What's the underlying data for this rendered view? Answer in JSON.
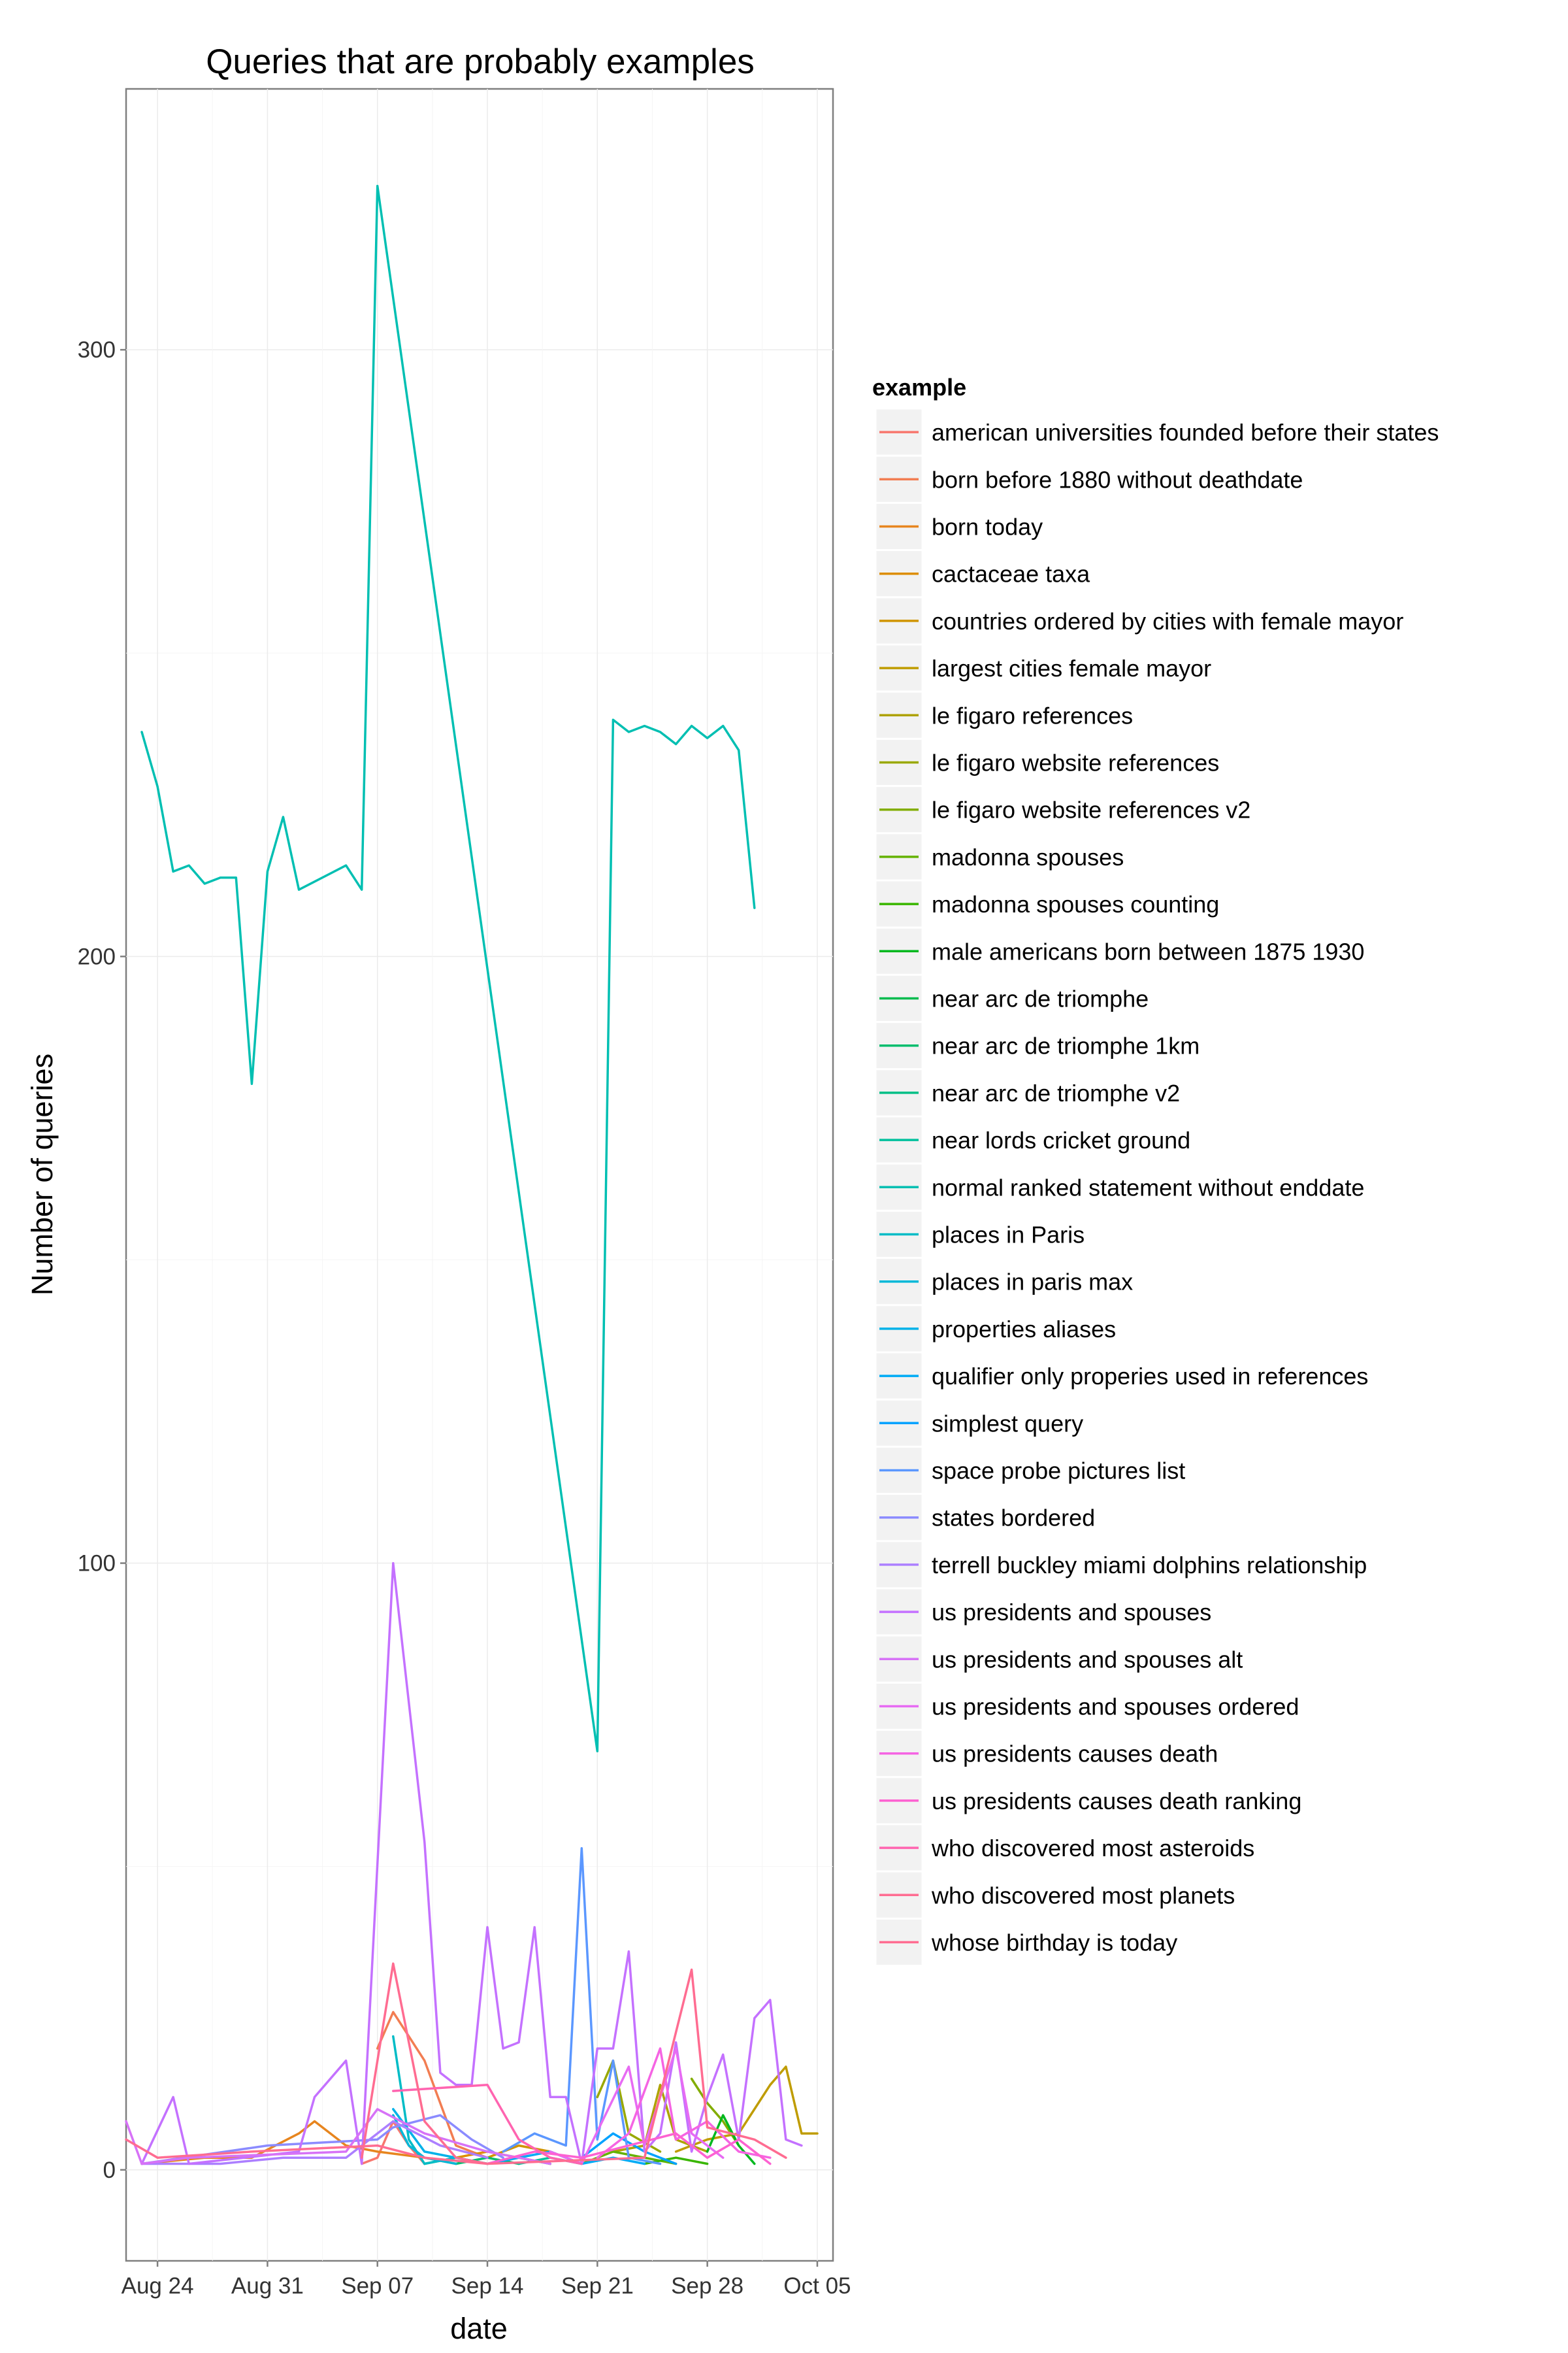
{
  "chart_data": {
    "type": "line",
    "title": "Queries that are probably examples",
    "xlabel": "date",
    "ylabel": "Number of queries",
    "x_ticks": [
      "Aug 24",
      "Aug 31",
      "Sep 07",
      "Sep 14",
      "Sep 21",
      "Sep 28",
      "Oct 05"
    ],
    "y_ticks": [
      "0",
      "100",
      "200",
      "300"
    ],
    "xlim": [
      "2015-08-22",
      "2015-10-06"
    ],
    "ylim": [
      -15,
      343
    ],
    "grid": true,
    "legend_title": "example",
    "legend_position": "right",
    "series": [
      {
        "name": "american universities founded before their states",
        "color": "#F8766D",
        "points": [
          [
            "2015-09-06",
            1
          ],
          [
            "2015-09-07",
            2
          ],
          [
            "2015-09-08",
            8
          ],
          [
            "2015-09-09",
            4
          ],
          [
            "2015-09-10",
            1
          ]
        ]
      },
      {
        "name": "born before 1880 without deathdate",
        "color": "#F27D52",
        "points": [
          [
            "2015-09-07",
            20
          ],
          [
            "2015-09-08",
            26
          ],
          [
            "2015-09-09",
            22
          ],
          [
            "2015-09-10",
            18
          ],
          [
            "2015-09-12",
            4
          ],
          [
            "2015-09-14",
            2
          ]
        ]
      },
      {
        "name": "born today",
        "color": "#E7851E",
        "points": [
          [
            "2015-08-23",
            1
          ],
          [
            "2015-08-27",
            2
          ],
          [
            "2015-08-30",
            2
          ],
          [
            "2015-09-02",
            6
          ],
          [
            "2015-09-03",
            8
          ],
          [
            "2015-09-05",
            4
          ],
          [
            "2015-09-07",
            3
          ],
          [
            "2015-09-10",
            2
          ],
          [
            "2015-09-12",
            1
          ]
        ]
      },
      {
        "name": "cactaceae taxa",
        "color": "#DD8D00",
        "points": [
          [
            "2015-09-12",
            2
          ],
          [
            "2015-09-14",
            3
          ],
          [
            "2015-09-16",
            2
          ],
          [
            "2015-09-18",
            1
          ]
        ]
      },
      {
        "name": "countries ordered by cities with female mayor",
        "color": "#D09400",
        "points": [
          [
            "2015-09-14",
            2
          ],
          [
            "2015-09-16",
            4
          ],
          [
            "2015-09-18",
            3
          ],
          [
            "2015-09-20",
            1
          ]
        ]
      },
      {
        "name": "largest cities female mayor",
        "color": "#BF9C00",
        "points": [
          [
            "2015-09-26",
            3
          ],
          [
            "2015-09-28",
            5
          ],
          [
            "2015-09-30",
            6
          ],
          [
            "2015-10-02",
            14
          ],
          [
            "2015-10-03",
            17
          ],
          [
            "2015-10-04",
            6
          ],
          [
            "2015-10-05",
            6
          ]
        ]
      },
      {
        "name": "le figaro references",
        "color": "#AEA200",
        "points": [
          [
            "2015-09-22",
            3
          ],
          [
            "2015-09-24",
            4
          ],
          [
            "2015-09-25",
            14
          ],
          [
            "2015-09-26",
            5
          ],
          [
            "2015-09-28",
            3
          ]
        ]
      },
      {
        "name": "le figaro website references",
        "color": "#99A800",
        "points": [
          [
            "2015-09-21",
            12
          ],
          [
            "2015-09-22",
            18
          ],
          [
            "2015-09-23",
            6
          ],
          [
            "2015-09-25",
            3
          ]
        ]
      },
      {
        "name": "le figaro website references v2",
        "color": "#82AD00",
        "points": [
          [
            "2015-09-27",
            15
          ],
          [
            "2015-09-28",
            11
          ],
          [
            "2015-09-29",
            8
          ],
          [
            "2015-09-30",
            4
          ]
        ]
      },
      {
        "name": "madonna spouses",
        "color": "#64B200",
        "points": [
          [
            "2015-09-20",
            1
          ],
          [
            "2015-09-22",
            3
          ],
          [
            "2015-09-24",
            2
          ],
          [
            "2015-09-26",
            1
          ]
        ]
      },
      {
        "name": "madonna spouses counting",
        "color": "#39B600",
        "points": [
          [
            "2015-09-24",
            1
          ],
          [
            "2015-09-26",
            2
          ],
          [
            "2015-09-28",
            1
          ]
        ]
      },
      {
        "name": "male americans born between 1875 1930",
        "color": "#00B81F",
        "points": [
          [
            "2015-09-28",
            3
          ],
          [
            "2015-09-29",
            9
          ],
          [
            "2015-09-30",
            4
          ],
          [
            "2015-10-01",
            1
          ]
        ]
      },
      {
        "name": "near arc de triomphe",
        "color": "#00BB4E",
        "points": [
          [
            "2015-09-10",
            1
          ],
          [
            "2015-09-12",
            2
          ],
          [
            "2015-09-14",
            1
          ]
        ]
      },
      {
        "name": "near arc de triomphe 1km",
        "color": "#00BD6D",
        "points": [
          [
            "2015-09-12",
            1
          ],
          [
            "2015-09-14",
            2
          ],
          [
            "2015-09-16",
            1
          ]
        ]
      },
      {
        "name": "near arc de triomphe v2",
        "color": "#00BF86",
        "points": [
          [
            "2015-09-14",
            1
          ],
          [
            "2015-09-16",
            2
          ],
          [
            "2015-09-18",
            1
          ]
        ]
      },
      {
        "name": "near lords cricket ground",
        "color": "#00C09D",
        "points": [
          [
            "2015-09-16",
            1
          ],
          [
            "2015-09-18",
            2
          ],
          [
            "2015-09-20",
            1
          ]
        ]
      },
      {
        "name": "normal ranked statement without enddate",
        "color": "#00BFB2",
        "points": [
          [
            "2015-08-23",
            237
          ],
          [
            "2015-08-24",
            228
          ],
          [
            "2015-08-25",
            214
          ],
          [
            "2015-08-26",
            215
          ],
          [
            "2015-08-27",
            212
          ],
          [
            "2015-08-28",
            213
          ],
          [
            "2015-08-29",
            213
          ],
          [
            "2015-08-30",
            179
          ],
          [
            "2015-08-31",
            214
          ],
          [
            "2015-09-01",
            223
          ],
          [
            "2015-09-02",
            211
          ],
          [
            "2015-09-05",
            215
          ],
          [
            "2015-09-06",
            211
          ],
          [
            "2015-09-07",
            327
          ],
          [
            "2015-09-21",
            69
          ],
          [
            "2015-09-22",
            239
          ],
          [
            "2015-09-23",
            237
          ],
          [
            "2015-09-24",
            238
          ],
          [
            "2015-09-25",
            237
          ],
          [
            "2015-09-26",
            235
          ],
          [
            "2015-09-27",
            238
          ],
          [
            "2015-09-28",
            236
          ],
          [
            "2015-09-29",
            238
          ],
          [
            "2015-09-30",
            234
          ],
          [
            "2015-10-01",
            208
          ]
        ]
      },
      {
        "name": "places in Paris",
        "color": "#00BCC6",
        "points": [
          [
            "2015-09-08",
            22
          ],
          [
            "2015-09-09",
            5
          ],
          [
            "2015-09-10",
            1
          ],
          [
            "2015-09-12",
            2
          ],
          [
            "2015-09-14",
            1
          ]
        ]
      },
      {
        "name": "places in paris max",
        "color": "#00B8D8",
        "points": [
          [
            "2015-09-08",
            9
          ],
          [
            "2015-09-09",
            4
          ],
          [
            "2015-09-10",
            2
          ],
          [
            "2015-09-12",
            1
          ]
        ]
      },
      {
        "name": "properties aliases",
        "color": "#00B2E8",
        "points": [
          [
            "2015-09-08",
            10
          ],
          [
            "2015-09-10",
            3
          ],
          [
            "2015-09-12",
            2
          ],
          [
            "2015-09-14",
            1
          ]
        ]
      },
      {
        "name": "qualifier only properies used in references",
        "color": "#00ABF5",
        "points": [
          [
            "2015-09-14",
            1
          ],
          [
            "2015-09-18",
            3
          ],
          [
            "2015-09-20",
            1
          ],
          [
            "2015-09-22",
            2
          ],
          [
            "2015-09-24",
            1
          ]
        ]
      },
      {
        "name": "simplest query",
        "color": "#00A2FF",
        "points": [
          [
            "2015-09-20",
            2
          ],
          [
            "2015-09-22",
            6
          ],
          [
            "2015-09-24",
            3
          ],
          [
            "2015-09-26",
            1
          ]
        ]
      },
      {
        "name": "space probe pictures list",
        "color": "#5B97FF",
        "points": [
          [
            "2015-09-15",
            3
          ],
          [
            "2015-09-17",
            6
          ],
          [
            "2015-09-19",
            4
          ],
          [
            "2015-09-20",
            53
          ],
          [
            "2015-09-21",
            5
          ],
          [
            "2015-09-22",
            18
          ],
          [
            "2015-09-23",
            2
          ],
          [
            "2015-09-25",
            1
          ]
        ]
      },
      {
        "name": "states bordered",
        "color": "#8B8BFF",
        "points": [
          [
            "2015-08-23",
            1
          ],
          [
            "2015-08-31",
            4
          ],
          [
            "2015-09-07",
            5
          ],
          [
            "2015-09-08",
            7
          ],
          [
            "2015-09-11",
            9
          ],
          [
            "2015-09-13",
            5
          ],
          [
            "2015-09-15",
            2
          ]
        ]
      },
      {
        "name": "terrell buckley miami dolphins relationship",
        "color": "#AC7FFF",
        "points": [
          [
            "2015-08-23",
            1
          ],
          [
            "2015-08-28",
            1
          ],
          [
            "2015-09-01",
            2
          ],
          [
            "2015-09-05",
            2
          ],
          [
            "2015-09-08",
            8
          ],
          [
            "2015-09-11",
            4
          ],
          [
            "2015-09-14",
            2
          ]
        ]
      },
      {
        "name": "us presidents and spouses",
        "color": "#C471FF",
        "points": [
          [
            "2015-08-23",
            1
          ],
          [
            "2015-08-25",
            12
          ],
          [
            "2015-08-26",
            1
          ],
          [
            "2015-09-02",
            3
          ],
          [
            "2015-09-03",
            12
          ],
          [
            "2015-09-05",
            18
          ],
          [
            "2015-09-06",
            1
          ],
          [
            "2015-09-08",
            100
          ],
          [
            "2015-09-10",
            54
          ],
          [
            "2015-09-11",
            16
          ],
          [
            "2015-09-12",
            14
          ],
          [
            "2015-09-13",
            14
          ],
          [
            "2015-09-14",
            40
          ],
          [
            "2015-09-15",
            20
          ],
          [
            "2015-09-16",
            21
          ],
          [
            "2015-09-17",
            40
          ],
          [
            "2015-09-18",
            12
          ],
          [
            "2015-09-19",
            12
          ],
          [
            "2015-09-20",
            1
          ],
          [
            "2015-09-21",
            20
          ],
          [
            "2015-09-22",
            20
          ],
          [
            "2015-09-23",
            36
          ],
          [
            "2015-09-24",
            3
          ],
          [
            "2015-09-25",
            6
          ],
          [
            "2015-09-26",
            21
          ],
          [
            "2015-09-27",
            3
          ],
          [
            "2015-09-28",
            12
          ],
          [
            "2015-09-29",
            19
          ],
          [
            "2015-09-30",
            5
          ],
          [
            "2015-10-01",
            25
          ],
          [
            "2015-10-02",
            28
          ],
          [
            "2015-10-03",
            5
          ],
          [
            "2015-10-04",
            4
          ]
        ]
      },
      {
        "name": "us presidents and spouses alt",
        "color": "#D772F7",
        "points": [
          [
            "2015-08-22",
            8
          ],
          [
            "2015-08-23",
            1
          ],
          [
            "2015-08-26",
            2
          ],
          [
            "2015-09-05",
            3
          ],
          [
            "2015-09-07",
            10
          ],
          [
            "2015-09-10",
            6
          ],
          [
            "2015-09-14",
            3
          ],
          [
            "2015-09-16",
            2
          ],
          [
            "2015-09-18",
            1
          ]
        ]
      },
      {
        "name": "us presidents and spouses ordered",
        "color": "#E76BF3",
        "points": [
          [
            "2015-09-18",
            3
          ],
          [
            "2015-09-20",
            1
          ],
          [
            "2015-09-23",
            17
          ],
          [
            "2015-09-24",
            4
          ],
          [
            "2015-09-26",
            20
          ],
          [
            "2015-09-27",
            6
          ],
          [
            "2015-09-29",
            2
          ]
        ]
      },
      {
        "name": "us presidents causes death",
        "color": "#F564E3",
        "points": [
          [
            "2015-09-21",
            2
          ],
          [
            "2015-09-23",
            6
          ],
          [
            "2015-09-25",
            20
          ],
          [
            "2015-09-26",
            5
          ],
          [
            "2015-09-28",
            8
          ],
          [
            "2015-09-30",
            3
          ],
          [
            "2015-10-02",
            2
          ]
        ]
      },
      {
        "name": "us presidents causes death ranking",
        "color": "#FD61D1",
        "points": [
          [
            "2015-09-14",
            1
          ],
          [
            "2015-09-17",
            3
          ],
          [
            "2015-09-20",
            2
          ],
          [
            "2015-09-23",
            4
          ],
          [
            "2015-09-26",
            6
          ],
          [
            "2015-09-28",
            2
          ],
          [
            "2015-09-30",
            5
          ],
          [
            "2015-10-02",
            1
          ]
        ]
      },
      {
        "name": "who discovered most asteroids",
        "color": "#FF64B0",
        "points": [
          [
            "2015-09-08",
            13
          ],
          [
            "2015-09-14",
            14
          ],
          [
            "2015-09-16",
            5
          ],
          [
            "2015-09-18",
            2
          ],
          [
            "2015-09-20",
            1
          ]
        ]
      },
      {
        "name": "who discovered most planets",
        "color": "#FF6C91",
        "points": [
          [
            "2015-08-22",
            5
          ],
          [
            "2015-08-24",
            2
          ],
          [
            "2015-08-30",
            3
          ],
          [
            "2015-09-07",
            4
          ],
          [
            "2015-09-10",
            2
          ],
          [
            "2015-09-14",
            1
          ],
          [
            "2015-09-24",
            2
          ],
          [
            "2015-09-27",
            33
          ],
          [
            "2015-09-28",
            7
          ],
          [
            "2015-10-01",
            5
          ],
          [
            "2015-10-03",
            2
          ]
        ]
      },
      {
        "name": "whose birthday is today",
        "color": "#FF6C91",
        "points": [
          [
            "2015-09-06",
            2
          ],
          [
            "2015-09-08",
            34
          ],
          [
            "2015-09-09",
            21
          ],
          [
            "2015-09-10",
            8
          ],
          [
            "2015-09-12",
            2
          ],
          [
            "2015-09-14",
            1
          ]
        ]
      }
    ]
  }
}
